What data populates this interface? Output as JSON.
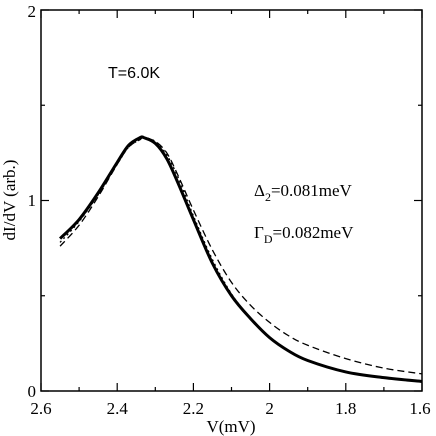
{
  "chart_data": {
    "type": "line",
    "xlabel": "V(mV)",
    "ylabel": "dI/dV (arb.)",
    "xlim": [
      2.6,
      1.6
    ],
    "ylim": [
      0,
      2
    ],
    "x_reversed": true,
    "grid": false,
    "x_ticks": [
      "2.6",
      "2.4",
      "2.2",
      "2",
      "1.8",
      "1.6"
    ],
    "y_ticks": [
      "0",
      "1",
      "2"
    ],
    "annotations": {
      "temperature": "T=6.0K",
      "delta_symbol": "Δ",
      "delta_sub": "2",
      "delta_value": "=0.081meV",
      "gamma_symbol": "Γ",
      "gamma_sub": "D",
      "gamma_value": "=0.082meV"
    },
    "series": [
      {
        "style": "solid-thick",
        "x": [
          2.55,
          2.5,
          2.45,
          2.4,
          2.37,
          2.34,
          2.33,
          2.3,
          2.27,
          2.24,
          2.2,
          2.15,
          2.1,
          2.05,
          2.0,
          1.95,
          1.9,
          1.8,
          1.7,
          1.6
        ],
        "y": [
          0.8,
          0.9,
          1.04,
          1.2,
          1.29,
          1.33,
          1.33,
          1.3,
          1.22,
          1.09,
          0.9,
          0.67,
          0.5,
          0.38,
          0.28,
          0.21,
          0.16,
          0.1,
          0.07,
          0.05
        ]
      },
      {
        "style": "dotted",
        "x": [
          2.55,
          2.5,
          2.45,
          2.4,
          2.37,
          2.34,
          2.33,
          2.3,
          2.27,
          2.24,
          2.2,
          2.15,
          2.1,
          2.05,
          2.0,
          1.95
        ],
        "y": [
          0.78,
          0.89,
          1.03,
          1.19,
          1.28,
          1.32,
          1.33,
          1.31,
          1.24,
          1.12,
          0.92,
          0.69,
          0.51,
          0.38,
          0.28,
          0.21
        ]
      },
      {
        "style": "dashed",
        "x": [
          2.55,
          2.5,
          2.45,
          2.4,
          2.37,
          2.34,
          2.33,
          2.3,
          2.27,
          2.24,
          2.2,
          2.15,
          2.1,
          2.05,
          2.0,
          1.95,
          1.9,
          1.8,
          1.7,
          1.6
        ],
        "y": [
          0.76,
          0.87,
          1.02,
          1.19,
          1.28,
          1.32,
          1.33,
          1.31,
          1.25,
          1.13,
          0.95,
          0.74,
          0.57,
          0.45,
          0.36,
          0.29,
          0.24,
          0.17,
          0.12,
          0.09
        ]
      }
    ]
  }
}
